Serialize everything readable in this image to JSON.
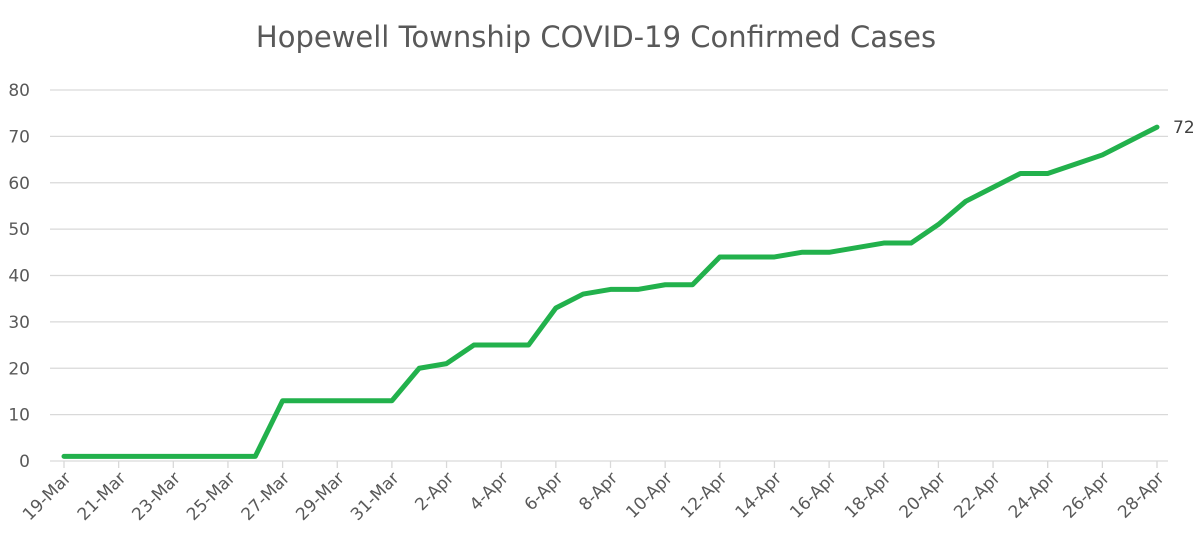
{
  "chart_data": {
    "type": "line",
    "title": "Hopewell Township COVID-19 Confirmed Cases",
    "xlabel": "",
    "ylabel": "",
    "ylim": [
      0,
      80
    ],
    "yticks": [
      0,
      10,
      20,
      30,
      40,
      50,
      60,
      70,
      80
    ],
    "grid": "horizontal",
    "legend": "none",
    "line_color": "#22B14C",
    "x": [
      "19-Mar",
      "20-Mar",
      "21-Mar",
      "22-Mar",
      "23-Mar",
      "24-Mar",
      "25-Mar",
      "26-Mar",
      "27-Mar",
      "28-Mar",
      "29-Mar",
      "30-Mar",
      "31-Mar",
      "1-Apr",
      "2-Apr",
      "3-Apr",
      "4-Apr",
      "5-Apr",
      "6-Apr",
      "7-Apr",
      "8-Apr",
      "9-Apr",
      "10-Apr",
      "11-Apr",
      "12-Apr",
      "13-Apr",
      "14-Apr",
      "15-Apr",
      "16-Apr",
      "17-Apr",
      "18-Apr",
      "19-Apr",
      "20-Apr",
      "21-Apr",
      "22-Apr",
      "23-Apr",
      "24-Apr",
      "25-Apr",
      "26-Apr",
      "27-Apr",
      "28-Apr"
    ],
    "x_tick_labels": [
      "19-Mar",
      "21-Mar",
      "23-Mar",
      "25-Mar",
      "27-Mar",
      "29-Mar",
      "31-Mar",
      "2-Apr",
      "4-Apr",
      "6-Apr",
      "8-Apr",
      "10-Apr",
      "12-Apr",
      "14-Apr",
      "16-Apr",
      "18-Apr",
      "20-Apr",
      "22-Apr",
      "24-Apr",
      "26-Apr",
      "28-Apr"
    ],
    "series": [
      {
        "values": [
          1,
          1,
          1,
          1,
          1,
          1,
          1,
          1,
          13,
          13,
          13,
          13,
          13,
          20,
          21,
          25,
          25,
          25,
          33,
          36,
          37,
          37,
          38,
          38,
          44,
          44,
          44,
          45,
          45,
          46,
          47,
          47,
          51,
          56,
          59,
          62,
          62,
          64,
          66,
          69,
          72
        ]
      }
    ],
    "annotations": [
      {
        "x": "28-Apr",
        "y": 72,
        "text": "72"
      }
    ]
  }
}
